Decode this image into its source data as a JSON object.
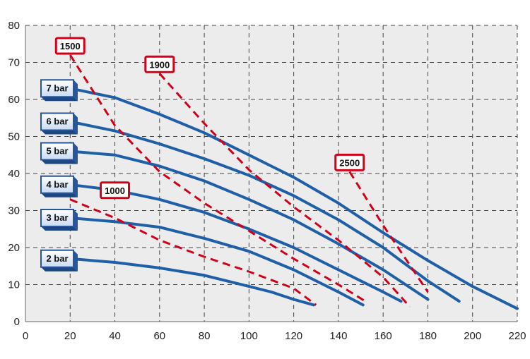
{
  "chart_data": {
    "type": "line",
    "title": "",
    "xlabel": "",
    "ylabel": "",
    "xlim": [
      0,
      220
    ],
    "ylim": [
      0,
      80
    ],
    "x_ticks": [
      0,
      20,
      40,
      60,
      80,
      100,
      120,
      140,
      160,
      180,
      200,
      220
    ],
    "y_ticks": [
      0,
      10,
      20,
      30,
      40,
      50,
      60,
      70,
      80
    ],
    "grid": true,
    "colors": {
      "pressure": "#1f5fa8",
      "speed": "#d0021b",
      "box_fill": "#dde9f7",
      "box_shadow": "#27569b"
    },
    "pressure_series": [
      {
        "name": "2 bar",
        "x": [
          20,
          40,
          60,
          80,
          100,
          110,
          120,
          129
        ],
        "y": [
          17,
          16,
          14.5,
          12.5,
          9.5,
          8,
          6,
          4.5
        ]
      },
      {
        "name": "3 bar",
        "x": [
          20,
          40,
          60,
          80,
          100,
          120,
          140,
          151
        ],
        "y": [
          28,
          27,
          25.5,
          22.5,
          19,
          14,
          8,
          4.5
        ]
      },
      {
        "name": "4 bar",
        "x": [
          20,
          40,
          60,
          80,
          100,
          120,
          140,
          160,
          168
        ],
        "y": [
          37,
          35.5,
          33,
          29.5,
          25,
          20,
          14,
          8,
          5.5
        ]
      },
      {
        "name": "5 bar",
        "x": [
          20,
          40,
          60,
          80,
          100,
          120,
          140,
          160,
          180
        ],
        "y": [
          46,
          45,
          42,
          38,
          33,
          27.5,
          21,
          14,
          6
        ]
      },
      {
        "name": "6 bar",
        "x": [
          20,
          40,
          60,
          80,
          100,
          120,
          140,
          160,
          180,
          194
        ],
        "y": [
          54,
          51.5,
          48,
          44,
          39.5,
          34,
          27.5,
          20,
          11,
          5.5
        ]
      },
      {
        "name": "7 bar",
        "x": [
          20,
          40,
          60,
          80,
          100,
          120,
          140,
          160,
          180,
          200,
          220
        ],
        "y": [
          63,
          60.5,
          56,
          51,
          45,
          39,
          32,
          24,
          16.5,
          9.5,
          3.5
        ]
      }
    ],
    "speed_series": [
      {
        "name": "1000",
        "x": [
          20,
          40,
          60,
          80,
          100,
          120,
          130
        ],
        "y": [
          33,
          28,
          22,
          17.5,
          13.5,
          9,
          4.5
        ]
      },
      {
        "name": "1500",
        "x": [
          20,
          40,
          60,
          80,
          100,
          120,
          140,
          152
        ],
        "y": [
          72,
          53,
          40.5,
          32,
          24.5,
          17,
          10,
          5.5
        ]
      },
      {
        "name": "1900",
        "x": [
          60,
          80,
          100,
          120,
          140,
          160,
          172
        ],
        "y": [
          67,
          53.5,
          41,
          31,
          22,
          12,
          4
        ]
      },
      {
        "name": "2500",
        "x": [
          145,
          160,
          180
        ],
        "y": [
          40.5,
          26,
          8
        ]
      }
    ],
    "pressure_label_boxes": [
      "2 bar",
      "3 bar",
      "4 bar",
      "5 bar",
      "6 bar",
      "7 bar"
    ],
    "speed_label_boxes": [
      "1000",
      "1500",
      "1900",
      "2500"
    ]
  }
}
